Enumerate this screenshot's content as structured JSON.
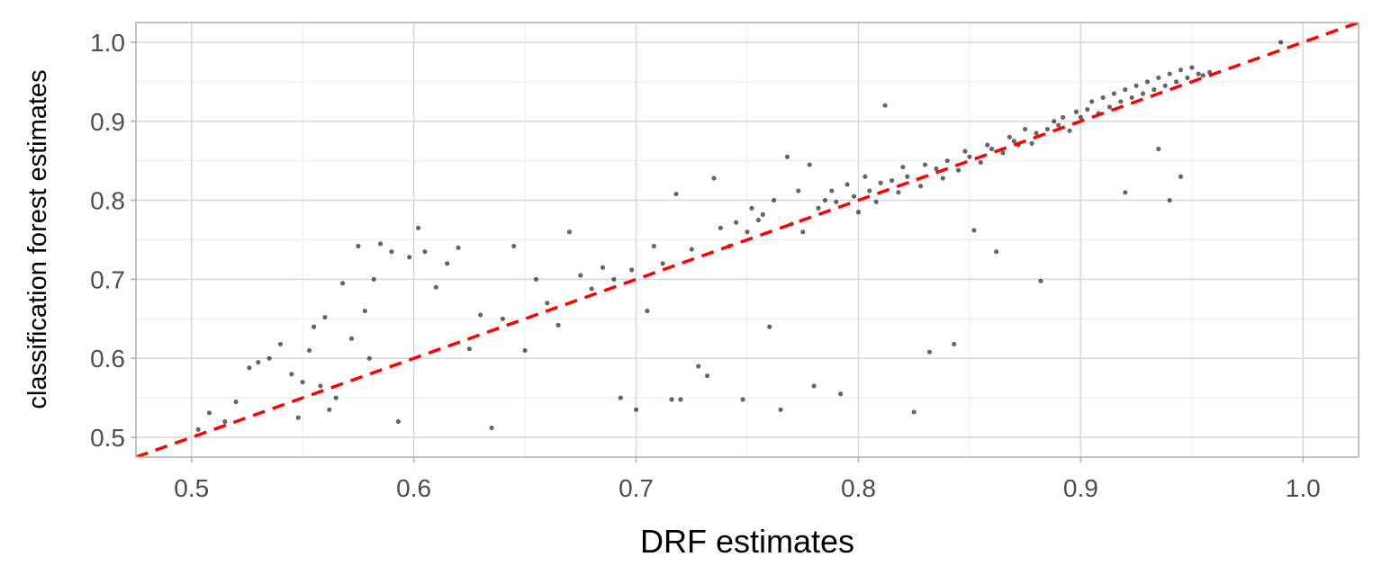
{
  "chart_data": {
    "type": "scatter",
    "xlabel": "DRF estimates",
    "ylabel": "classification forest estimates",
    "xlim": [
      0.475,
      1.025
    ],
    "ylim": [
      0.475,
      1.025
    ],
    "x_ticks": [
      0.5,
      0.6,
      0.7,
      0.8,
      0.9,
      1.0
    ],
    "x_tick_labels": [
      "0.5",
      "0.6",
      "0.7",
      "0.8",
      "0.9",
      "1.0"
    ],
    "y_ticks": [
      0.5,
      0.6,
      0.7,
      0.8,
      0.9,
      1.0
    ],
    "y_tick_labels": [
      "0.5",
      "0.6",
      "0.7",
      "0.8",
      "0.9",
      "1.0"
    ],
    "grid": true,
    "point_color": "#000000",
    "reference_line": {
      "slope": 1,
      "intercept": 0,
      "style": "dashed",
      "color": "#ff0000"
    },
    "points": [
      [
        0.503,
        0.51
      ],
      [
        0.508,
        0.531
      ],
      [
        0.515,
        0.52
      ],
      [
        0.52,
        0.545
      ],
      [
        0.526,
        0.588
      ],
      [
        0.53,
        0.595
      ],
      [
        0.535,
        0.6
      ],
      [
        0.54,
        0.618
      ],
      [
        0.545,
        0.58
      ],
      [
        0.548,
        0.525
      ],
      [
        0.55,
        0.57
      ],
      [
        0.553,
        0.61
      ],
      [
        0.555,
        0.64
      ],
      [
        0.558,
        0.565
      ],
      [
        0.56,
        0.652
      ],
      [
        0.562,
        0.535
      ],
      [
        0.565,
        0.55
      ],
      [
        0.568,
        0.695
      ],
      [
        0.572,
        0.625
      ],
      [
        0.575,
        0.742
      ],
      [
        0.578,
        0.66
      ],
      [
        0.58,
        0.6
      ],
      [
        0.582,
        0.7
      ],
      [
        0.585,
        0.745
      ],
      [
        0.59,
        0.735
      ],
      [
        0.593,
        0.52
      ],
      [
        0.598,
        0.728
      ],
      [
        0.602,
        0.765
      ],
      [
        0.605,
        0.735
      ],
      [
        0.61,
        0.69
      ],
      [
        0.615,
        0.72
      ],
      [
        0.62,
        0.74
      ],
      [
        0.625,
        0.612
      ],
      [
        0.63,
        0.655
      ],
      [
        0.635,
        0.512
      ],
      [
        0.64,
        0.65
      ],
      [
        0.645,
        0.742
      ],
      [
        0.65,
        0.61
      ],
      [
        0.655,
        0.7
      ],
      [
        0.66,
        0.67
      ],
      [
        0.665,
        0.642
      ],
      [
        0.67,
        0.76
      ],
      [
        0.675,
        0.705
      ],
      [
        0.68,
        0.688
      ],
      [
        0.685,
        0.715
      ],
      [
        0.69,
        0.7
      ],
      [
        0.693,
        0.55
      ],
      [
        0.698,
        0.712
      ],
      [
        0.7,
        0.535
      ],
      [
        0.705,
        0.66
      ],
      [
        0.708,
        0.742
      ],
      [
        0.712,
        0.72
      ],
      [
        0.716,
        0.548
      ],
      [
        0.718,
        0.808
      ],
      [
        0.72,
        0.548
      ],
      [
        0.725,
        0.738
      ],
      [
        0.728,
        0.59
      ],
      [
        0.732,
        0.578
      ],
      [
        0.735,
        0.828
      ],
      [
        0.738,
        0.765
      ],
      [
        0.742,
        0.742
      ],
      [
        0.745,
        0.772
      ],
      [
        0.748,
        0.548
      ],
      [
        0.75,
        0.76
      ],
      [
        0.752,
        0.79
      ],
      [
        0.755,
        0.775
      ],
      [
        0.757,
        0.782
      ],
      [
        0.76,
        0.64
      ],
      [
        0.762,
        0.8
      ],
      [
        0.765,
        0.535
      ],
      [
        0.768,
        0.855
      ],
      [
        0.77,
        0.77
      ],
      [
        0.773,
        0.812
      ],
      [
        0.775,
        0.76
      ],
      [
        0.778,
        0.845
      ],
      [
        0.78,
        0.565
      ],
      [
        0.782,
        0.79
      ],
      [
        0.785,
        0.8
      ],
      [
        0.788,
        0.812
      ],
      [
        0.79,
        0.798
      ],
      [
        0.792,
        0.555
      ],
      [
        0.795,
        0.82
      ],
      [
        0.798,
        0.805
      ],
      [
        0.8,
        0.785
      ],
      [
        0.803,
        0.83
      ],
      [
        0.805,
        0.812
      ],
      [
        0.808,
        0.798
      ],
      [
        0.81,
        0.822
      ],
      [
        0.812,
        0.92
      ],
      [
        0.815,
        0.825
      ],
      [
        0.818,
        0.81
      ],
      [
        0.82,
        0.842
      ],
      [
        0.822,
        0.83
      ],
      [
        0.825,
        0.532
      ],
      [
        0.828,
        0.818
      ],
      [
        0.83,
        0.845
      ],
      [
        0.832,
        0.608
      ],
      [
        0.835,
        0.84
      ],
      [
        0.838,
        0.828
      ],
      [
        0.84,
        0.85
      ],
      [
        0.843,
        0.618
      ],
      [
        0.845,
        0.838
      ],
      [
        0.848,
        0.862
      ],
      [
        0.85,
        0.855
      ],
      [
        0.852,
        0.762
      ],
      [
        0.855,
        0.848
      ],
      [
        0.858,
        0.87
      ],
      [
        0.86,
        0.865
      ],
      [
        0.862,
        0.735
      ],
      [
        0.865,
        0.86
      ],
      [
        0.868,
        0.88
      ],
      [
        0.87,
        0.875
      ],
      [
        0.872,
        0.87
      ],
      [
        0.875,
        0.89
      ],
      [
        0.878,
        0.872
      ],
      [
        0.88,
        0.885
      ],
      [
        0.882,
        0.698
      ],
      [
        0.885,
        0.89
      ],
      [
        0.888,
        0.9
      ],
      [
        0.89,
        0.895
      ],
      [
        0.892,
        0.905
      ],
      [
        0.895,
        0.888
      ],
      [
        0.898,
        0.912
      ],
      [
        0.9,
        0.905
      ],
      [
        0.903,
        0.915
      ],
      [
        0.905,
        0.925
      ],
      [
        0.908,
        0.91
      ],
      [
        0.91,
        0.93
      ],
      [
        0.913,
        0.918
      ],
      [
        0.915,
        0.935
      ],
      [
        0.918,
        0.925
      ],
      [
        0.92,
        0.94
      ],
      [
        0.923,
        0.93
      ],
      [
        0.925,
        0.945
      ],
      [
        0.928,
        0.935
      ],
      [
        0.93,
        0.95
      ],
      [
        0.933,
        0.94
      ],
      [
        0.935,
        0.955
      ],
      [
        0.938,
        0.945
      ],
      [
        0.94,
        0.96
      ],
      [
        0.943,
        0.95
      ],
      [
        0.945,
        0.965
      ],
      [
        0.948,
        0.955
      ],
      [
        0.95,
        0.968
      ],
      [
        0.953,
        0.96
      ],
      [
        0.955,
        0.958
      ],
      [
        0.958,
        0.962
      ],
      [
        0.94,
        0.8
      ],
      [
        0.935,
        0.865
      ],
      [
        0.945,
        0.83
      ],
      [
        0.92,
        0.81
      ],
      [
        0.99,
        1.0
      ]
    ]
  }
}
